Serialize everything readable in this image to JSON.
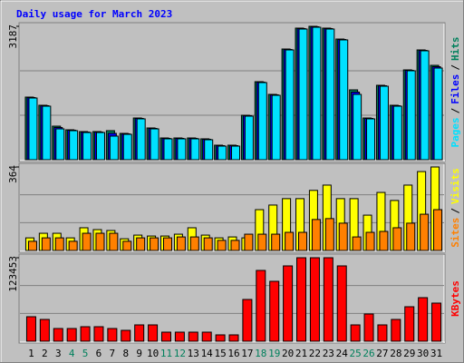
{
  "chart_data": [
    {
      "type": "bar",
      "title": "Daily usage for March 2023",
      "legend_separator": "/",
      "ylim": [
        0,
        3187
      ],
      "yticks": [
        3187
      ],
      "series": [
        {
          "name": "Hits",
          "color": "#00805c",
          "values": [
            1496,
            1301,
            802,
            715,
            672,
            672,
            694,
            629,
            997,
            759,
            520,
            520,
            520,
            499,
            347,
            347,
            1062,
            1864,
            1561,
            2645,
            3144,
            3187,
            3144,
            2883,
            1669,
            997,
            1778,
            1301,
            2146,
            2623,
            2255
          ]
        },
        {
          "name": "Files",
          "color": "#0000ff",
          "values": [
            1485,
            1290,
            770,
            705,
            661,
            661,
            630,
            618,
            987,
            748,
            510,
            510,
            510,
            488,
            336,
            336,
            1052,
            1854,
            1550,
            2634,
            3133,
            3176,
            3133,
            2872,
            1615,
            987,
            1767,
            1290,
            2136,
            2612,
            2222
          ]
        },
        {
          "name": "Pages",
          "color": "#00e0ff",
          "values": [
            1474,
            1279,
            737,
            694,
            650,
            650,
            564,
            607,
            976,
            737,
            499,
            499,
            499,
            477,
            325,
            325,
            1041,
            1843,
            1539,
            2623,
            3122,
            3165,
            3122,
            2862,
            1561,
            976,
            1756,
            1279,
            2125,
            2602,
            2190
          ]
        }
      ]
    },
    {
      "type": "bar",
      "legend_separator": "/",
      "ylim": [
        0,
        364
      ],
      "yticks": [
        364
      ],
      "series": [
        {
          "name": "Visits",
          "color": "#ffff00",
          "values": [
            55,
            75,
            75,
            55,
            99,
            91,
            87,
            51,
            67,
            63,
            63,
            71,
            99,
            67,
            55,
            59,
            55,
            178,
            198,
            226,
            226,
            262,
            285,
            226,
            226,
            154,
            253,
            218,
            285,
            344,
            364
          ]
        },
        {
          "name": "Sites",
          "color": "#ff8000",
          "values": [
            40,
            55,
            55,
            40,
            75,
            75,
            75,
            40,
            55,
            55,
            55,
            59,
            59,
            55,
            44,
            44,
            71,
            71,
            71,
            79,
            79,
            135,
            139,
            119,
            59,
            79,
            83,
            99,
            119,
            158,
            178
          ]
        }
      ]
    },
    {
      "type": "bar",
      "ylim": [
        0,
        123453
      ],
      "yticks": [
        123453
      ],
      "categories": [
        "1",
        "2",
        "3",
        "4",
        "5",
        "6",
        "7",
        "8",
        "9",
        "10",
        "11",
        "12",
        "13",
        "14",
        "15",
        "16",
        "17",
        "18",
        "19",
        "20",
        "21",
        "22",
        "23",
        "24",
        "25",
        "26",
        "27",
        "28",
        "29",
        "30",
        "31"
      ],
      "category_colors": [
        "#000000",
        "#000000",
        "#000000",
        "#00805c",
        "#00805c",
        "#000000",
        "#000000",
        "#000000",
        "#000000",
        "#000000",
        "#00805c",
        "#00805c",
        "#000000",
        "#000000",
        "#000000",
        "#000000",
        "#000000",
        "#00805c",
        "#00805c",
        "#000000",
        "#000000",
        "#000000",
        "#000000",
        "#000000",
        "#00805c",
        "#00805c",
        "#000000",
        "#000000",
        "#000000",
        "#000000",
        "#000000"
      ],
      "series": [
        {
          "name": "KBytes",
          "color": "#ff0000",
          "values": [
            36234,
            32208,
            18788,
            18788,
            21472,
            21472,
            18788,
            16104,
            24156,
            24156,
            13420,
            13420,
            13420,
            13420,
            9394,
            9394,
            61732,
            104676,
            88572,
            111386,
            123453,
            123453,
            123453,
            111386,
            24156,
            40260,
            24156,
            32208,
            50996,
            64416,
            56364
          ]
        }
      ]
    }
  ]
}
